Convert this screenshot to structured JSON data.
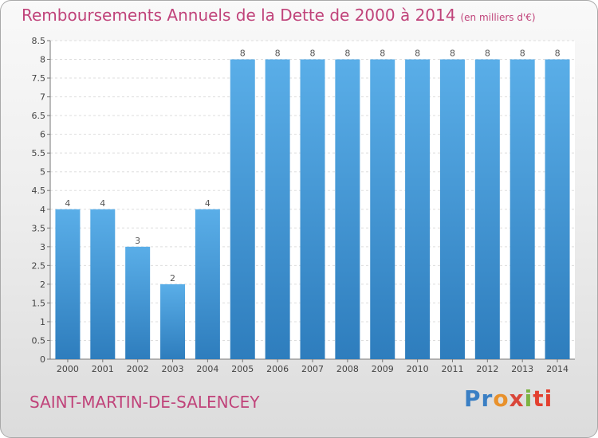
{
  "chart_data": {
    "type": "bar",
    "title": "Remboursements Annuels de la Dette de 2000 à 2014",
    "unit_note": "(en milliers d'€)",
    "categories": [
      "2000",
      "2001",
      "2002",
      "2003",
      "2004",
      "2005",
      "2006",
      "2007",
      "2008",
      "2009",
      "2010",
      "2011",
      "2012",
      "2013",
      "2014"
    ],
    "values": [
      4,
      4,
      3,
      2,
      4,
      8,
      8,
      8,
      8,
      8,
      8,
      8,
      8,
      8,
      8
    ],
    "data_labels": [
      "4",
      "4",
      "3",
      "2",
      "4",
      "8",
      "8",
      "8",
      "8",
      "8",
      "8",
      "8",
      "8",
      "8",
      "8"
    ],
    "ylim": [
      0,
      8.5
    ],
    "y_ticks": [
      0,
      0.5,
      1,
      1.5,
      2,
      2.5,
      3,
      3.5,
      4,
      4.5,
      5,
      5.5,
      6,
      6.5,
      7,
      7.5,
      8,
      8.5
    ],
    "grid": true,
    "xlabel": "",
    "ylabel": "",
    "bar_color_top": "#5aaee8",
    "bar_color_bottom": "#2e7dbd"
  },
  "commune": "SAINT-MARTIN-DE-SALENCEY",
  "logo": {
    "parts": [
      "Pr",
      "o",
      "x",
      "i",
      "ti"
    ],
    "alt": "Proxiti"
  },
  "colors": {
    "accent": "#c0437a"
  }
}
